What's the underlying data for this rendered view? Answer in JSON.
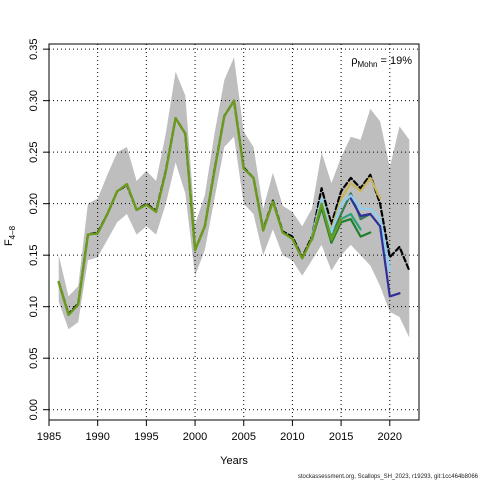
{
  "chart_data": {
    "type": "line",
    "xlabel": "Years",
    "ylabel_main": "F",
    "ylabel_sub": "4–8",
    "xlim": [
      1985,
      2023
    ],
    "ylim": [
      -0.01,
      0.355
    ],
    "xticks": [
      1985,
      1990,
      1995,
      2000,
      2005,
      2010,
      2015,
      2020
    ],
    "yticks": [
      0.0,
      0.05,
      0.1,
      0.15,
      0.2,
      0.25,
      0.3,
      0.35
    ],
    "ytick_labels": [
      "0.00",
      "0.05",
      "0.10",
      "0.15",
      "0.20",
      "0.25",
      "0.30",
      "0.35"
    ],
    "grid": true,
    "rho_label": "ρ",
    "rho_sub": "Mohn",
    "rho_value": "= 19%",
    "footer": "stockassessment.org, Scallops_SH_2023, r19293, git:1cc464b8066",
    "band": {
      "color": "#bebebe",
      "years": [
        1986,
        1987,
        1988,
        1989,
        1990,
        1991,
        1992,
        1993,
        1994,
        1995,
        1996,
        1997,
        1998,
        1999,
        2000,
        2001,
        2002,
        2003,
        2004,
        2005,
        2006,
        2007,
        2008,
        2009,
        2010,
        2011,
        2012,
        2013,
        2014,
        2015,
        2016,
        2017,
        2018,
        2019,
        2020,
        2021,
        2022
      ],
      "lower": [
        0.105,
        0.078,
        0.085,
        0.145,
        0.148,
        0.165,
        0.182,
        0.19,
        0.17,
        0.178,
        0.17,
        0.2,
        0.24,
        0.21,
        0.13,
        0.155,
        0.205,
        0.255,
        0.265,
        0.2,
        0.19,
        0.15,
        0.175,
        0.15,
        0.145,
        0.13,
        0.145,
        0.16,
        0.135,
        0.15,
        0.16,
        0.15,
        0.14,
        0.12,
        0.095,
        0.09,
        0.07
      ],
      "upper": [
        0.15,
        0.11,
        0.12,
        0.2,
        0.205,
        0.228,
        0.25,
        0.255,
        0.222,
        0.232,
        0.222,
        0.268,
        0.328,
        0.305,
        0.18,
        0.208,
        0.268,
        0.32,
        0.342,
        0.27,
        0.255,
        0.195,
        0.23,
        0.198,
        0.192,
        0.178,
        0.195,
        0.25,
        0.22,
        0.245,
        0.265,
        0.262,
        0.292,
        0.28,
        0.235,
        0.275,
        0.262
      ]
    },
    "series": [
      {
        "color": "#000000",
        "dashed": true,
        "width": 2.2,
        "years": [
          1986,
          1987,
          1988,
          1989,
          1990,
          1991,
          1992,
          1993,
          1994,
          1995,
          1996,
          1997,
          1998,
          1999,
          2000,
          2001,
          2002,
          2003,
          2004,
          2005,
          2006,
          2007,
          2008,
          2009,
          2010,
          2011,
          2012,
          2013,
          2014,
          2015,
          2016,
          2017,
          2018,
          2019,
          2020,
          2021,
          2022
        ],
        "values": [
          0.124,
          0.093,
          0.103,
          0.17,
          0.172,
          0.19,
          0.212,
          0.218,
          0.194,
          0.2,
          0.193,
          0.232,
          0.283,
          0.268,
          0.155,
          0.178,
          0.233,
          0.285,
          0.3,
          0.235,
          0.225,
          0.175,
          0.203,
          0.173,
          0.168,
          0.148,
          0.168,
          0.215,
          0.18,
          0.212,
          0.225,
          0.215,
          0.228,
          0.2,
          0.148,
          0.158,
          0.135
        ]
      },
      {
        "color": "#c9b458",
        "dashed": false,
        "width": 2.2,
        "years": [
          2012,
          2013,
          2014,
          2015,
          2016,
          2017,
          2018,
          2019
        ],
        "values": [
          0.168,
          0.205,
          0.175,
          0.205,
          0.22,
          0.212,
          0.225,
          0.205
        ]
      },
      {
        "color": "#3a7a50",
        "dashed": false,
        "width": 2.2,
        "years": [
          2012,
          2013,
          2014,
          2015,
          2016,
          2017,
          2018
        ],
        "values": [
          0.168,
          0.2,
          0.168,
          0.19,
          0.21,
          0.185,
          0.19
        ]
      },
      {
        "color": "#8fd0f2",
        "dashed": false,
        "width": 2.2,
        "years": [
          2012,
          2013,
          2014,
          2015,
          2016,
          2017,
          2018,
          2019,
          2020
        ],
        "values": [
          0.168,
          0.205,
          0.172,
          0.2,
          0.208,
          0.195,
          0.195,
          0.185,
          0.135
        ]
      },
      {
        "color": "#2f2f9a",
        "dashed": false,
        "width": 2.2,
        "years": [
          2016,
          2017,
          2018,
          2019,
          2020,
          2021
        ],
        "values": [
          0.205,
          0.188,
          0.19,
          0.178,
          0.11,
          0.113
        ]
      },
      {
        "color": "#2aa37a",
        "dashed": false,
        "width": 2.2,
        "years": [
          2012,
          2013,
          2014,
          2015,
          2016,
          2017
        ],
        "values": [
          0.166,
          0.198,
          0.167,
          0.185,
          0.19,
          0.175
        ]
      },
      {
        "color": "#1e7f2c",
        "dashed": false,
        "width": 2.2,
        "years": [
          2012,
          2013,
          2014,
          2015,
          2016,
          2017,
          2018
        ],
        "values": [
          0.165,
          0.196,
          0.162,
          0.182,
          0.185,
          0.168,
          0.172
        ]
      },
      {
        "color": "#6a9a1e",
        "dashed": false,
        "width": 2.4,
        "years": [
          1986,
          1987,
          1988,
          1989,
          1990,
          1991,
          1992,
          1993,
          1994,
          1995,
          1996,
          1997,
          1998,
          1999,
          2000,
          2001,
          2002,
          2003,
          2004,
          2005,
          2006,
          2007,
          2008,
          2009,
          2010,
          2011,
          2012,
          2013,
          2014,
          2015
        ],
        "values": [
          0.124,
          0.092,
          0.102,
          0.17,
          0.171,
          0.19,
          0.212,
          0.219,
          0.194,
          0.199,
          0.192,
          0.231,
          0.283,
          0.268,
          0.155,
          0.178,
          0.232,
          0.285,
          0.3,
          0.234,
          0.225,
          0.174,
          0.202,
          0.172,
          0.166,
          0.147,
          0.166,
          0.2,
          0.165,
          0.185
        ]
      }
    ]
  }
}
